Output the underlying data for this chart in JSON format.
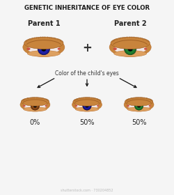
{
  "title": "GENETIC INHERITANCE OF EYE COLOR",
  "parent1_label": "Parent 1",
  "parent2_label": "Parent 2",
  "child_label": "Color of the child's eyes",
  "watermark": "shutterstock.com · 730204852",
  "percentages": [
    "0%",
    "50%",
    "50%"
  ],
  "bg_color": "#f5f5f5",
  "skin_color": "#C8843C",
  "skin_mid": "#B87030",
  "skin_dark": "#9A5A20",
  "skin_light": "#DDA060",
  "eyelid_top": "#C8843C",
  "eye_white": "#F2E8E8",
  "iris_blue": "#1A1A90",
  "iris_blue_inner": "#2222AA",
  "iris_green": "#1E7A30",
  "iris_green_inner": "#2A9040",
  "iris_brown": "#7A3E10",
  "iris_brown_inner": "#8B4A18",
  "iris_navy": "#12127A",
  "pupil_color": "#050508",
  "tear_duct": "#CC5040",
  "title_fontsize": 6.2,
  "label_fontsize": 7.0,
  "child_label_fontsize": 5.5,
  "pct_fontsize": 7.0,
  "plus_fontsize": 12
}
